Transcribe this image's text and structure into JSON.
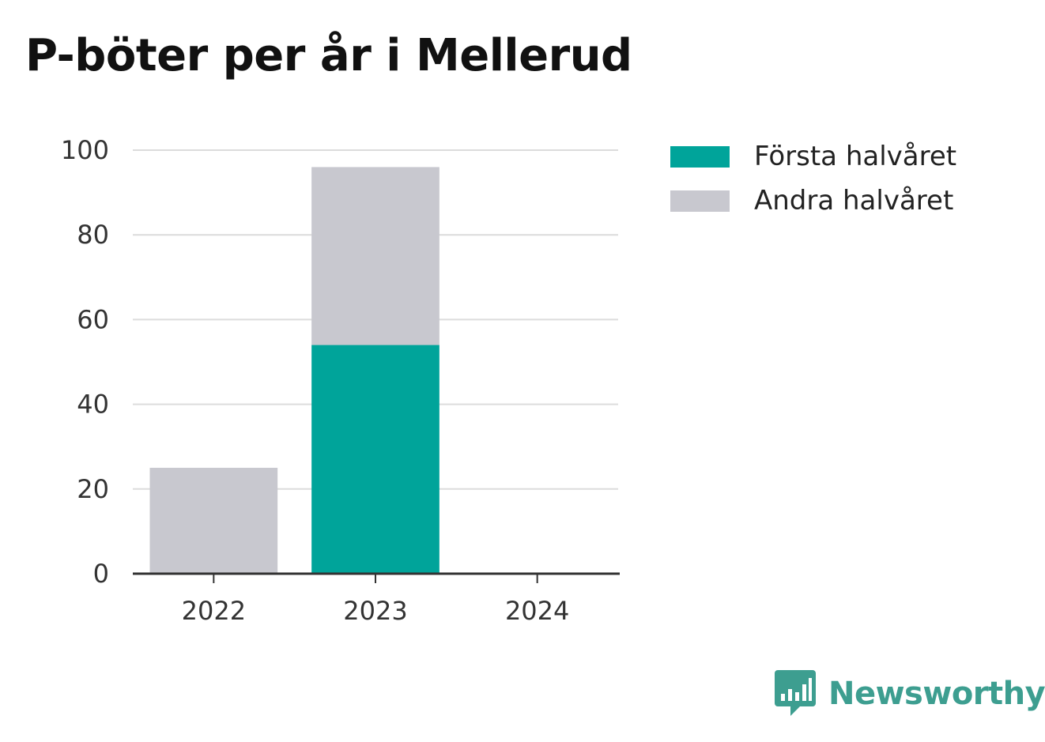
{
  "page": {
    "title": "P-böter per år i Mellerud"
  },
  "legend": {
    "items": [
      {
        "label": "Första halvåret",
        "color": "#00a49a"
      },
      {
        "label": "Andra halvåret",
        "color": "#c8c8cf"
      }
    ]
  },
  "brand": {
    "name": "Newsworthy",
    "color": "#3d9e90",
    "icon": "bar-chart-speech-bubble-icon"
  },
  "chart_data": {
    "type": "bar",
    "stacked": true,
    "title": "P-böter per år i Mellerud",
    "xlabel": "",
    "ylabel": "",
    "categories": [
      "2022",
      "2023",
      "2024"
    ],
    "series": [
      {
        "name": "Första halvåret",
        "color": "#00a49a",
        "values": [
          0,
          54,
          0
        ]
      },
      {
        "name": "Andra halvåret",
        "color": "#c8c8cf",
        "values": [
          25,
          42,
          0
        ]
      }
    ],
    "ylim": [
      0,
      100
    ],
    "yticks": [
      0,
      20,
      40,
      60,
      80,
      100
    ],
    "grid": true,
    "legend_position": "top-right"
  }
}
